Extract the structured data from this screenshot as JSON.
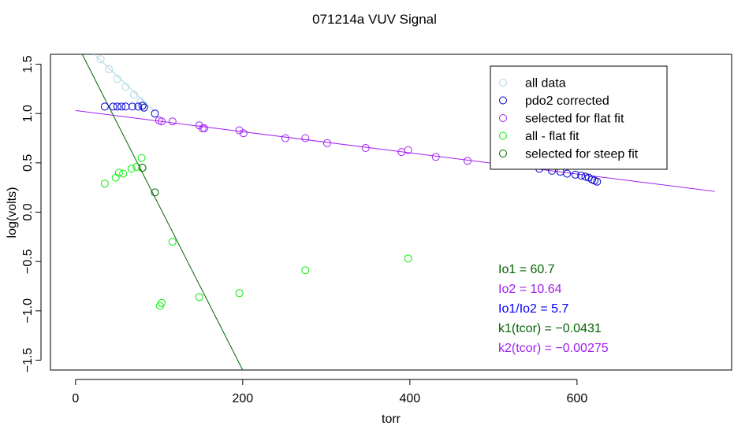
{
  "chart_data": {
    "type": "scatter",
    "title": "071214a   VUV Signal",
    "xlabel": "torr",
    "ylabel": "log(volts)",
    "xlim": [
      -30,
      785
    ],
    "ylim": [
      -1.6,
      1.6
    ],
    "x_ticks": [
      0,
      200,
      400,
      600
    ],
    "y_ticks": [
      -1.5,
      -1.0,
      -0.5,
      0.0,
      0.5,
      1.0,
      1.5
    ],
    "x_tick_labels": [
      "0",
      "200",
      "400",
      "600"
    ],
    "y_tick_labels": [
      "−1.5",
      "−1.0",
      "−0.5",
      "0.0",
      "0.5",
      "1.0",
      "1.5"
    ],
    "series": [
      {
        "name": "all data",
        "color": "#add8e6",
        "mark": "circle",
        "points": [
          [
            30,
            1.55
          ],
          [
            40,
            1.45
          ],
          [
            50,
            1.35
          ],
          [
            60,
            1.27
          ],
          [
            70,
            1.19
          ],
          [
            78,
            1.12
          ],
          [
            82,
            1.08
          ]
        ],
        "curve": [
          [
            10,
            1.7
          ],
          [
            20,
            1.62
          ],
          [
            30,
            1.54
          ],
          [
            40,
            1.46
          ],
          [
            50,
            1.38
          ],
          [
            60,
            1.3
          ],
          [
            70,
            1.22
          ],
          [
            78,
            1.15
          ],
          [
            85,
            1.1
          ],
          [
            95,
            1.02
          ]
        ]
      },
      {
        "name": "pdo2 corrected",
        "color": "#0000cd",
        "mark": "circle",
        "points": [
          [
            35,
            1.07
          ],
          [
            45,
            1.07
          ],
          [
            50,
            1.07
          ],
          [
            55,
            1.07
          ],
          [
            60,
            1.07
          ],
          [
            68,
            1.07
          ],
          [
            75,
            1.07
          ],
          [
            80,
            1.08
          ],
          [
            82,
            1.06
          ],
          [
            95,
            1.0
          ],
          [
            540,
            0.47
          ],
          [
            555,
            0.44
          ],
          [
            570,
            0.42
          ],
          [
            580,
            0.41
          ],
          [
            588,
            0.39
          ],
          [
            598,
            0.38
          ],
          [
            605,
            0.37
          ],
          [
            610,
            0.36
          ],
          [
            614,
            0.35
          ],
          [
            618,
            0.33
          ],
          [
            621,
            0.32
          ],
          [
            624,
            0.31
          ]
        ]
      },
      {
        "name": "selected for flat fit",
        "color": "#a020f0",
        "mark": "circle",
        "points": [
          [
            100,
            0.93
          ],
          [
            103,
            0.92
          ],
          [
            116,
            0.92
          ],
          [
            148,
            0.88
          ],
          [
            152,
            0.85
          ],
          [
            154,
            0.85
          ],
          [
            196,
            0.83
          ],
          [
            201,
            0.8
          ],
          [
            251,
            0.75
          ],
          [
            275,
            0.75
          ],
          [
            301,
            0.7
          ],
          [
            347,
            0.65
          ],
          [
            390,
            0.61
          ],
          [
            398,
            0.63
          ],
          [
            431,
            0.56
          ],
          [
            469,
            0.52
          ],
          [
            502,
            0.5
          ],
          [
            527,
            0.47
          ]
        ]
      },
      {
        "name": "all - flat fit",
        "color": "#00ee00",
        "mark": "circle",
        "points": [
          [
            35,
            0.29
          ],
          [
            48,
            0.35
          ],
          [
            52,
            0.4
          ],
          [
            57,
            0.39
          ],
          [
            67,
            0.44
          ],
          [
            73,
            0.46
          ],
          [
            79,
            0.55
          ],
          [
            80,
            0.45
          ],
          [
            101,
            -0.95
          ],
          [
            103,
            -0.92
          ],
          [
            116,
            -0.3
          ],
          [
            148,
            -0.86
          ],
          [
            196,
            -0.82
          ],
          [
            275,
            -0.59
          ],
          [
            398,
            -0.47
          ]
        ]
      },
      {
        "name": "selected for steep fit",
        "color": "#006400",
        "mark": "circle",
        "points": [
          [
            80,
            0.45
          ],
          [
            95,
            0.2
          ]
        ]
      }
    ],
    "fit_lines": [
      {
        "name": "flat fit",
        "color": "#a020f0",
        "x": [
          0,
          765
        ],
        "y": [
          1.03,
          0.21
        ]
      },
      {
        "name": "steep fit",
        "color": "#006400",
        "x": [
          8,
          200
        ],
        "y": [
          1.6,
          -1.6
        ]
      }
    ],
    "legend_position": "top-right",
    "annotations": [
      {
        "text": "Io1 =  60.7",
        "color": "#006400"
      },
      {
        "text": "Io2 =  10.64",
        "color": "#a020f0"
      },
      {
        "text": "Io1/Io2 =  5.7",
        "color": "#0000ff"
      },
      {
        "text": "k1(tcor) =  −0.0431",
        "color": "#006400"
      },
      {
        "text": "k2(tcor) =  −0.00275",
        "color": "#a020f0"
      }
    ]
  }
}
